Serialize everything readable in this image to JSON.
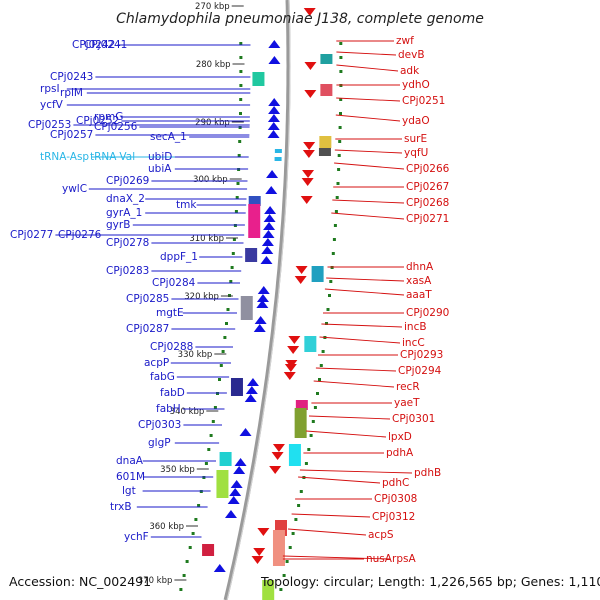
{
  "title": "Chlamydophila pneumoniae J138, complete genome",
  "footer": {
    "accession": "Accession: NC_002491",
    "topology": "Topology: circular; Length: 1,226,565 bp; Genes: 1,110"
  },
  "colors": {
    "backbone": "#9a9a9a",
    "forward_label": "#1a1ac8",
    "reverse_label": "#d41010",
    "trna_label": "#29b6e6",
    "tick_mark": "#1f7a1f"
  },
  "ticks": [
    "270 kbp",
    "280 kbp",
    "290 kbp",
    "300 kbp",
    "310 kbp",
    "320 kbp",
    "330 kbp",
    "340 kbp",
    "350 kbp",
    "360 kbp",
    "370 kbp"
  ],
  "left_labels": [
    "CPj0241",
    "CPj0242",
    "CPj0243",
    "rpsI",
    "rplM",
    "ycfV",
    "rpmG",
    "CPj0252",
    "CPj0253",
    "CPj0256",
    "CPj0257",
    "secA_1",
    "tRNA-Asp",
    "tRNA-Val",
    "ubiD",
    "ubiA",
    "CPj0269",
    "ywlC",
    "dnaX_2",
    "tmk",
    "gyrA_1",
    "gyrB",
    "CPj0276",
    "CPj0277",
    "CPj0278",
    "dppF_1",
    "CPj0283",
    "CPj0284",
    "CPj0285",
    "mgtE",
    "CPj0287",
    "CPj0288",
    "acpP",
    "fabG",
    "fabD",
    "fabH",
    "CPj0303",
    "glgP",
    "dnaA",
    "601M",
    "lgt",
    "trxB",
    "ychF"
  ],
  "right_labels": [
    "zwf",
    "devB",
    "adk",
    "ydhO",
    "CPj0251",
    "ydaO",
    "surE",
    "yqfU",
    "CPj0266",
    "CPj0267",
    "CPj0268",
    "CPj0271",
    "dhnA",
    "xasA",
    "aaaT",
    "CPj0290",
    "incB",
    "incC",
    "CPj0293",
    "CPj0294",
    "recR",
    "yaeT",
    "CPj0301",
    "lpxD",
    "pdhA",
    "pdhB",
    "pdhC",
    "CPj0308",
    "CPj0312",
    "acpS",
    "nusA",
    "rpsA"
  ]
}
